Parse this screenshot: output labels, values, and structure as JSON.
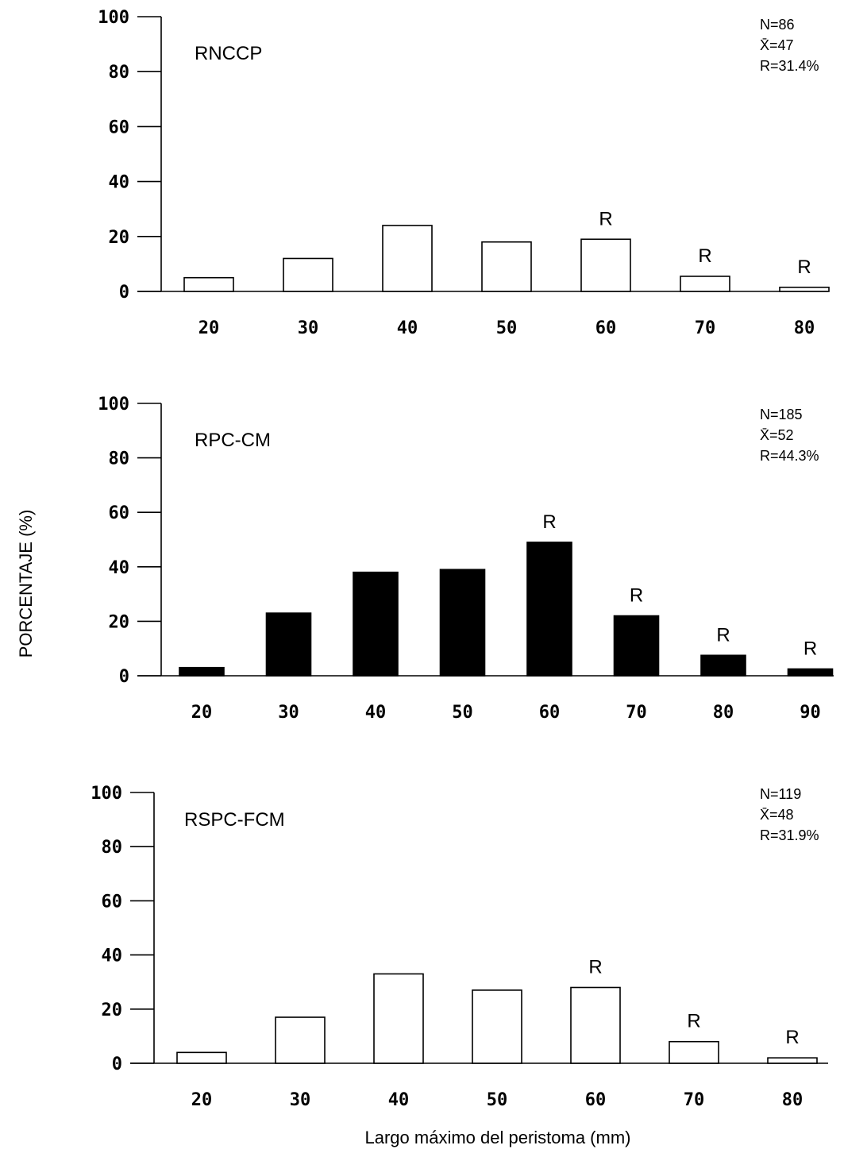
{
  "y_axis_label": "PORCENTAJE (%)",
  "x_axis_label": "Largo máximo del peristoma (mm)",
  "chart_data": [
    {
      "type": "bar",
      "title": "RNCCP",
      "stats": [
        "N=86",
        "X̄=47",
        "R=31.4%"
      ],
      "categories": [
        "20",
        "30",
        "40",
        "50",
        "60",
        "70",
        "80"
      ],
      "values": [
        5,
        12,
        24,
        18,
        19,
        5.5,
        1.5
      ],
      "bar_fill": "#ffffff",
      "bar_labels": [
        "",
        "",
        "",
        "",
        "R",
        "R",
        "R"
      ],
      "yticks": [
        "0",
        "20",
        "40",
        "60",
        "80",
        "100"
      ],
      "ylim": [
        0,
        100
      ],
      "xlabel": "",
      "ylabel": ""
    },
    {
      "type": "bar",
      "title": "RPC-CM",
      "stats": [
        "N=185",
        "X̄=52",
        "R=44.3%"
      ],
      "categories": [
        "20",
        "30",
        "40",
        "50",
        "60",
        "70",
        "80",
        "90"
      ],
      "values": [
        3,
        23,
        38,
        39,
        49,
        22,
        7.5,
        2.5
      ],
      "bar_fill": "#000000",
      "bar_labels": [
        "",
        "",
        "",
        "",
        "R",
        "R",
        "R",
        "R"
      ],
      "yticks": [
        "0",
        "20",
        "40",
        "60",
        "80",
        "100"
      ],
      "ylim": [
        0,
        100
      ],
      "xlabel": "",
      "ylabel": ""
    },
    {
      "type": "bar",
      "title": "RSPC-FCM",
      "stats": [
        "N=119",
        "X̄=48",
        "R=31.9%"
      ],
      "categories": [
        "20",
        "30",
        "40",
        "50",
        "60",
        "70",
        "80"
      ],
      "values": [
        4,
        17,
        33,
        27,
        28,
        8,
        2
      ],
      "bar_fill": "#ffffff",
      "bar_labels": [
        "",
        "",
        "",
        "",
        "R",
        "R",
        "R"
      ],
      "yticks": [
        "0",
        "20",
        "40",
        "60",
        "80",
        "100"
      ],
      "ylim": [
        0,
        100
      ],
      "xlabel": "",
      "ylabel": ""
    }
  ]
}
